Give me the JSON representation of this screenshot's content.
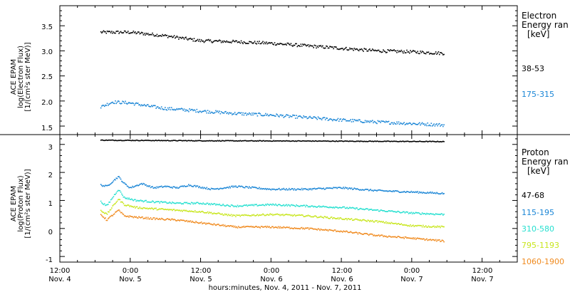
{
  "xlabel": "hours:minutes, Nov.  4, 2011 - Nov.  7, 2011",
  "x_ticks": [
    {
      "t": 0,
      "time": "12:00",
      "day": "Nov. 4"
    },
    {
      "t": 12,
      "time": "0:00",
      "day": "Nov. 5"
    },
    {
      "t": 24,
      "time": "12:00",
      "day": "Nov. 5"
    },
    {
      "t": 36,
      "time": "0:00",
      "day": "Nov. 6"
    },
    {
      "t": 48,
      "time": "12:00",
      "day": "Nov. 6"
    },
    {
      "t": 60,
      "time": "0:00",
      "day": "Nov. 7"
    },
    {
      "t": 72,
      "time": "12:00",
      "day": "Nov. 7"
    }
  ],
  "chart_data": [
    {
      "type": "scatter",
      "ylabel": [
        "ACE EPAM",
        "log(Electron Flux)",
        "[1/(cm²s ster MeV)]"
      ],
      "ylim": [
        1.33,
        3.9
      ],
      "yticks": [
        "1.5",
        "2.0",
        "2.5",
        "3.0",
        "3.5"
      ],
      "xlim": [
        0,
        78
      ],
      "legend_title": [
        "Electron",
        "Energy ran",
        "[keV]"
      ],
      "series": [
        {
          "name": "38-53",
          "color": "#000000",
          "x": [
            7,
            12,
            18,
            24,
            30,
            36,
            42,
            48,
            54,
            60,
            65.5
          ],
          "y": [
            3.37,
            3.37,
            3.3,
            3.2,
            3.18,
            3.15,
            3.1,
            3.05,
            3.0,
            2.98,
            2.95
          ]
        },
        {
          "name": "175-315",
          "color": "#1b86d6",
          "x": [
            7,
            9,
            12,
            15,
            18,
            24,
            30,
            36,
            42,
            48,
            54,
            60,
            65.5
          ],
          "y": [
            1.88,
            1.98,
            1.96,
            1.9,
            1.85,
            1.8,
            1.75,
            1.72,
            1.67,
            1.62,
            1.58,
            1.55,
            1.52
          ]
        }
      ]
    },
    {
      "type": "scatter",
      "ylabel": [
        "ACE EPAM",
        "log(Proton Flux)",
        "[1/(cm²s ster MeV)]"
      ],
      "ylim": [
        -1.2,
        3.35
      ],
      "yticks": [
        "-1",
        "0",
        "1",
        "2",
        "3"
      ],
      "xlim": [
        0,
        78
      ],
      "legend_title": [
        "Proton",
        "Energy ran",
        "[keV]"
      ],
      "series": [
        {
          "name": "47-68",
          "color": "#000000",
          "x": [
            7,
            24,
            42,
            65.5
          ],
          "y": [
            3.15,
            3.13,
            3.12,
            3.1
          ]
        },
        {
          "name": "115-195",
          "color": "#1b86d6",
          "x": [
            7,
            8,
            10,
            11,
            12,
            14,
            16,
            18,
            20,
            22,
            26,
            30,
            36,
            42,
            48,
            54,
            60,
            65.5
          ],
          "y": [
            1.55,
            1.5,
            1.85,
            1.6,
            1.45,
            1.6,
            1.45,
            1.5,
            1.45,
            1.55,
            1.4,
            1.5,
            1.4,
            1.4,
            1.45,
            1.35,
            1.3,
            1.25
          ]
        },
        {
          "name": "310-580",
          "color": "#27e0d0",
          "x": [
            7,
            8,
            10,
            11,
            13,
            16,
            20,
            24,
            30,
            36,
            42,
            48,
            54,
            60,
            65.5
          ],
          "y": [
            0.95,
            0.8,
            1.4,
            1.1,
            1.0,
            0.95,
            0.9,
            0.9,
            0.8,
            0.85,
            0.8,
            0.75,
            0.65,
            0.55,
            0.5
          ]
        },
        {
          "name": "795-1193",
          "color": "#c8e61e",
          "x": [
            7,
            8,
            10,
            11,
            13,
            16,
            20,
            24,
            30,
            36,
            42,
            48,
            54,
            60,
            65.5
          ],
          "y": [
            0.65,
            0.5,
            1.05,
            0.85,
            0.75,
            0.7,
            0.65,
            0.6,
            0.45,
            0.5,
            0.45,
            0.35,
            0.25,
            0.1,
            0.05
          ]
        },
        {
          "name": "1060-1900",
          "color": "#f08a1e",
          "x": [
            7,
            8,
            10,
            11,
            13,
            16,
            20,
            24,
            30,
            36,
            42,
            48,
            54,
            60,
            65.5
          ],
          "y": [
            0.5,
            0.3,
            0.65,
            0.45,
            0.4,
            0.35,
            0.3,
            0.2,
            0.05,
            0.05,
            0.0,
            -0.1,
            -0.25,
            -0.35,
            -0.45
          ]
        }
      ]
    }
  ]
}
